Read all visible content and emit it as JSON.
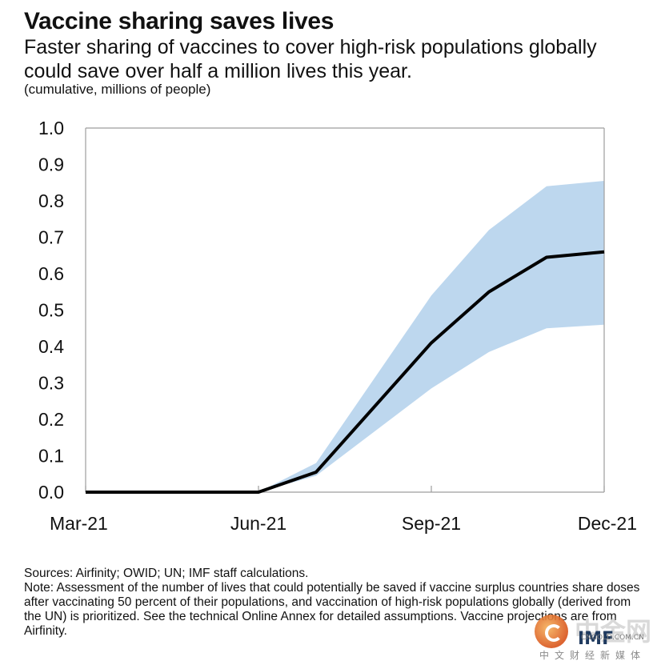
{
  "title": "Vaccine sharing saves lives",
  "subtitle": "Faster sharing of vaccines to cover high-risk populations globally could save over half a million lives this year.",
  "unit_note": "(cumulative, millions of people)",
  "sources": "Sources: Airfinity; OWID; UN; IMF staff calculations.",
  "note": "Note: Assessment of the number of lives that could potentially be saved if vaccine surplus countries share doses after vaccinating 50 percent of their populations, and vaccination of high-risk populations globally (derived from the UN) is prioritized. See the technical Online Annex for detailed assumptions. Vaccine projections are from Airfinity.",
  "watermark": {
    "brand": "中金网",
    "sub": "中文财经新媒体",
    "imf": "IMF",
    "domain": "CNGOLD.COM.CN"
  },
  "chart_data": {
    "type": "area",
    "title": "Vaccine sharing saves lives",
    "xlabel": "",
    "ylabel": "",
    "x_ticks": [
      "Mar-21",
      "Jun-21",
      "Sep-21",
      "Dec-21"
    ],
    "ylim": [
      0,
      1.0
    ],
    "y_ticks": [
      "0.0",
      "0.1",
      "0.2",
      "0.3",
      "0.4",
      "0.5",
      "0.6",
      "0.7",
      "0.8",
      "0.9",
      "1.0"
    ],
    "x_months": [
      "Mar-21",
      "Apr-21",
      "May-21",
      "Jun-21",
      "Jul-21",
      "Aug-21",
      "Sep-21",
      "Oct-21",
      "Nov-21",
      "Dec-21"
    ],
    "series": [
      {
        "values": [
          0.0,
          0.0,
          0.0,
          0.0,
          0.055,
          null,
          0.41,
          0.55,
          0.645,
          0.66
        ]
      }
    ],
    "band": {
      "upper": [
        0.0,
        0.0,
        0.0,
        0.0,
        0.08,
        null,
        0.54,
        0.72,
        0.84,
        0.855
      ],
      "lower": [
        0.0,
        0.0,
        0.0,
        0.0,
        0.045,
        null,
        0.285,
        0.385,
        0.45,
        0.46
      ]
    },
    "colors": {
      "line": "#000000",
      "band": "#bdd7ee",
      "axis": "#9e9e9e"
    },
    "grid": false,
    "legend": "none"
  }
}
